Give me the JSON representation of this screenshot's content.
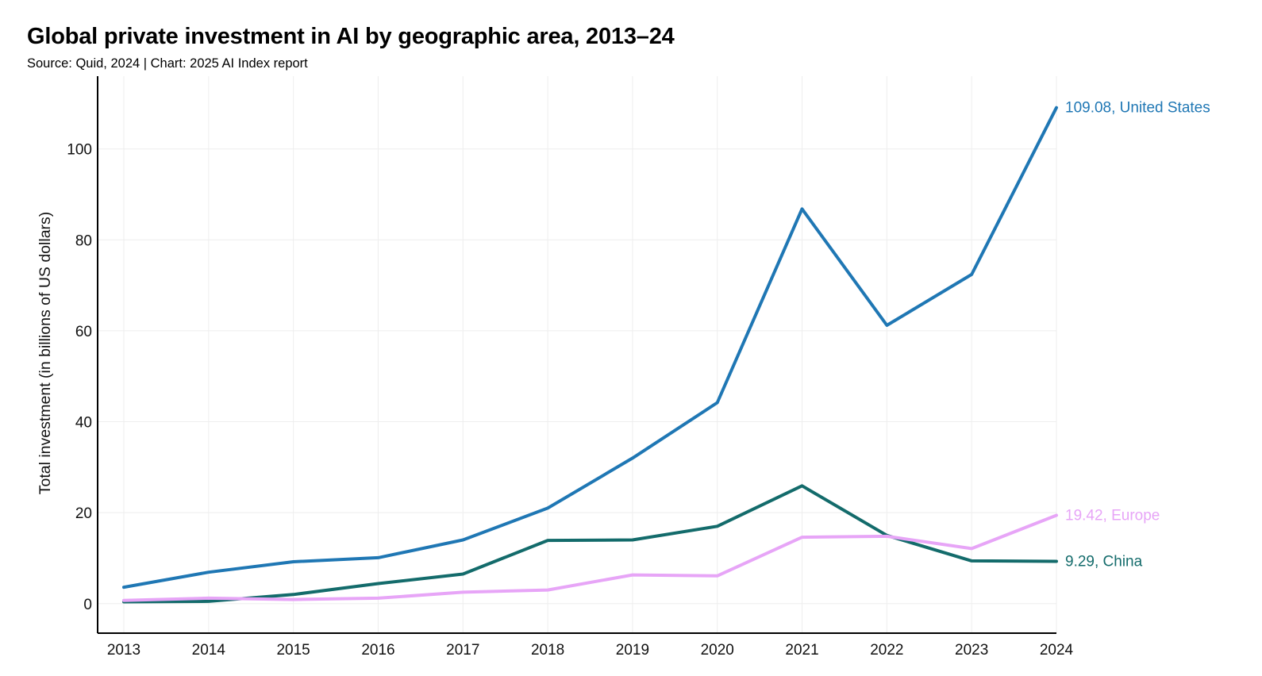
{
  "title": "Global private investment in AI by geographic area, 2013–24",
  "subtitle": "Source: Quid, 2024 | Chart: 2025 AI Index report",
  "chart_data": {
    "type": "line",
    "title": "Global private investment in AI by geographic area, 2013–24",
    "xlabel": "",
    "ylabel": "Total investment (in billions of US dollars)",
    "x": [
      2013,
      2014,
      2015,
      2016,
      2017,
      2018,
      2019,
      2020,
      2021,
      2022,
      2023,
      2024
    ],
    "xlim": [
      2013,
      2024
    ],
    "ylim": [
      -6.5,
      116
    ],
    "yticks": [
      0,
      20,
      40,
      60,
      80,
      100
    ],
    "grid": true,
    "legend": "end-of-line labels",
    "series": [
      {
        "name": "United States",
        "end_label": "109.08, United States",
        "color": "#1f77b4",
        "values": [
          3.6,
          6.9,
          9.2,
          10.1,
          14.0,
          21.0,
          32.0,
          44.2,
          86.8,
          61.2,
          72.4,
          109.08
        ]
      },
      {
        "name": "Europe",
        "end_label": "19.42, Europe",
        "color": "#e7a5f7",
        "values": [
          0.7,
          1.2,
          0.9,
          1.2,
          2.5,
          3.0,
          6.3,
          6.1,
          14.6,
          14.8,
          12.1,
          19.42
        ]
      },
      {
        "name": "China",
        "end_label": "9.29, China",
        "color": "#136b6b",
        "values": [
          0.4,
          0.5,
          2.0,
          4.4,
          6.5,
          13.9,
          14.0,
          17.0,
          25.9,
          15.0,
          9.4,
          9.29
        ]
      }
    ]
  }
}
